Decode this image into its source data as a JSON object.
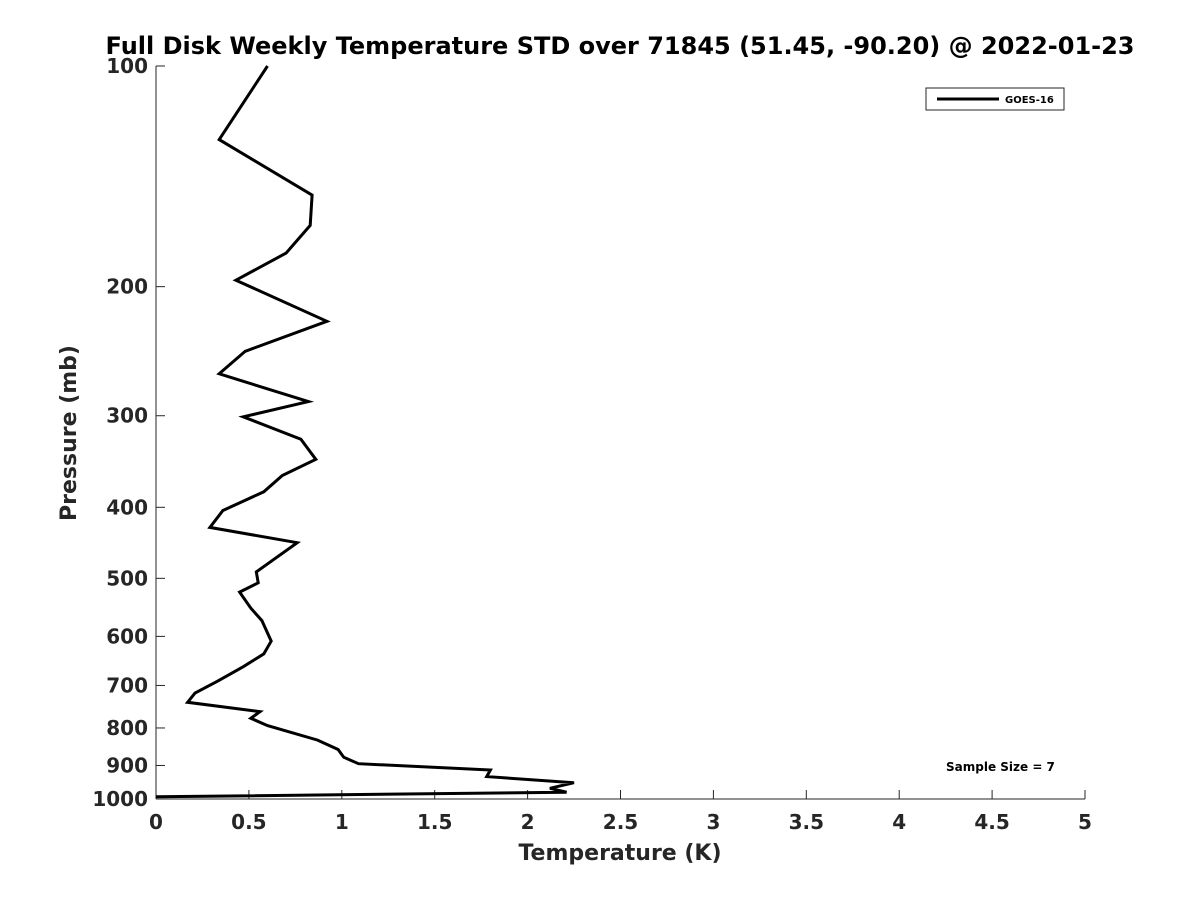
{
  "chart_data": {
    "type": "line",
    "title": "Full Disk Weekly Temperature STD over 71845 (51.45, -90.20) @ 2022-01-23",
    "xlabel": "Temperature (K)",
    "ylabel": "Pressure (mb)",
    "xlim": [
      0,
      5
    ],
    "ylim": [
      1000,
      100
    ],
    "y_scale": "log",
    "y_reversed": true,
    "xticks": [
      0,
      0.5,
      1,
      1.5,
      2,
      2.5,
      3,
      3.5,
      4,
      4.5,
      5
    ],
    "xtick_labels": [
      "0",
      "0.5",
      "1",
      "1.5",
      "2",
      "2.5",
      "3",
      "3.5",
      "4",
      "4.5",
      "5"
    ],
    "yticks": [
      100,
      200,
      300,
      400,
      500,
      600,
      700,
      800,
      900,
      1000
    ],
    "ytick_labels": [
      "100",
      "200",
      "300",
      "400",
      "500",
      "600",
      "700",
      "800",
      "900",
      "1000"
    ],
    "grid": false,
    "legend_position": "top-right",
    "annotation": "Sample Size = 7",
    "series": [
      {
        "name": "GOES-16",
        "color": "#000000",
        "points": [
          [
            0.6,
            100
          ],
          [
            0.34,
            126
          ],
          [
            0.84,
            150
          ],
          [
            0.83,
            165
          ],
          [
            0.7,
            180
          ],
          [
            0.43,
            196
          ],
          [
            0.92,
            223
          ],
          [
            0.48,
            245
          ],
          [
            0.34,
            263
          ],
          [
            0.82,
            287
          ],
          [
            0.47,
            301
          ],
          [
            0.78,
            323
          ],
          [
            0.86,
            344
          ],
          [
            0.68,
            362
          ],
          [
            0.58,
            381
          ],
          [
            0.36,
            404
          ],
          [
            0.29,
            426
          ],
          [
            0.76,
            447
          ],
          [
            0.54,
            490
          ],
          [
            0.55,
            507
          ],
          [
            0.45,
            522
          ],
          [
            0.51,
            549
          ],
          [
            0.57,
            571
          ],
          [
            0.62,
            609
          ],
          [
            0.58,
            634
          ],
          [
            0.47,
            660
          ],
          [
            0.33,
            691
          ],
          [
            0.21,
            717
          ],
          [
            0.17,
            738
          ],
          [
            0.56,
            760
          ],
          [
            0.51,
            776
          ],
          [
            0.6,
            794
          ],
          [
            0.87,
            831
          ],
          [
            0.98,
            856
          ],
          [
            1.01,
            877
          ],
          [
            1.09,
            895
          ],
          [
            1.8,
            913
          ],
          [
            1.78,
            932
          ],
          [
            2.25,
            950
          ],
          [
            2.12,
            967
          ],
          [
            2.21,
            979
          ],
          [
            0.0,
            993
          ]
        ]
      }
    ]
  }
}
